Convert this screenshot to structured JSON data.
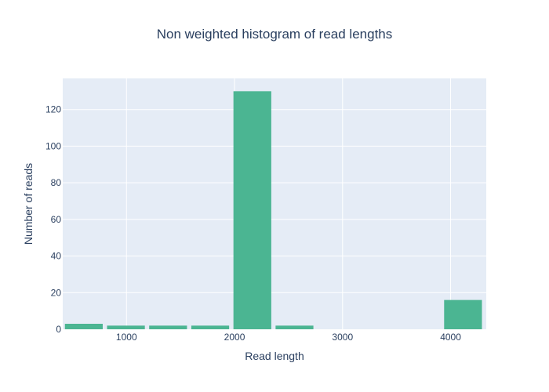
{
  "chart_data": {
    "type": "bar",
    "title": "Non weighted histogram of read lengths",
    "xlabel": "Read length",
    "ylabel": "Number of reads",
    "bins": [
      {
        "x0": 430,
        "x1": 780,
        "value": 3
      },
      {
        "x0": 820,
        "x1": 1170,
        "value": 2
      },
      {
        "x0": 1210,
        "x1": 1560,
        "value": 2
      },
      {
        "x0": 1600,
        "x1": 1950,
        "value": 2
      },
      {
        "x0": 1990,
        "x1": 2340,
        "value": 130
      },
      {
        "x0": 2380,
        "x1": 2730,
        "value": 2
      },
      {
        "x0": 3940,
        "x1": 4290,
        "value": 16
      }
    ],
    "xlim": [
      410,
      4330
    ],
    "ylim": [
      0,
      137
    ],
    "x_ticks": [
      1000,
      2000,
      3000,
      4000
    ],
    "y_ticks": [
      0,
      20,
      40,
      60,
      80,
      100,
      120
    ],
    "grid": true,
    "colors": {
      "bar": "#4bb592",
      "plot_background": "#e5ecf6",
      "grid": "#ffffff",
      "text": "#2a3f5f"
    }
  }
}
